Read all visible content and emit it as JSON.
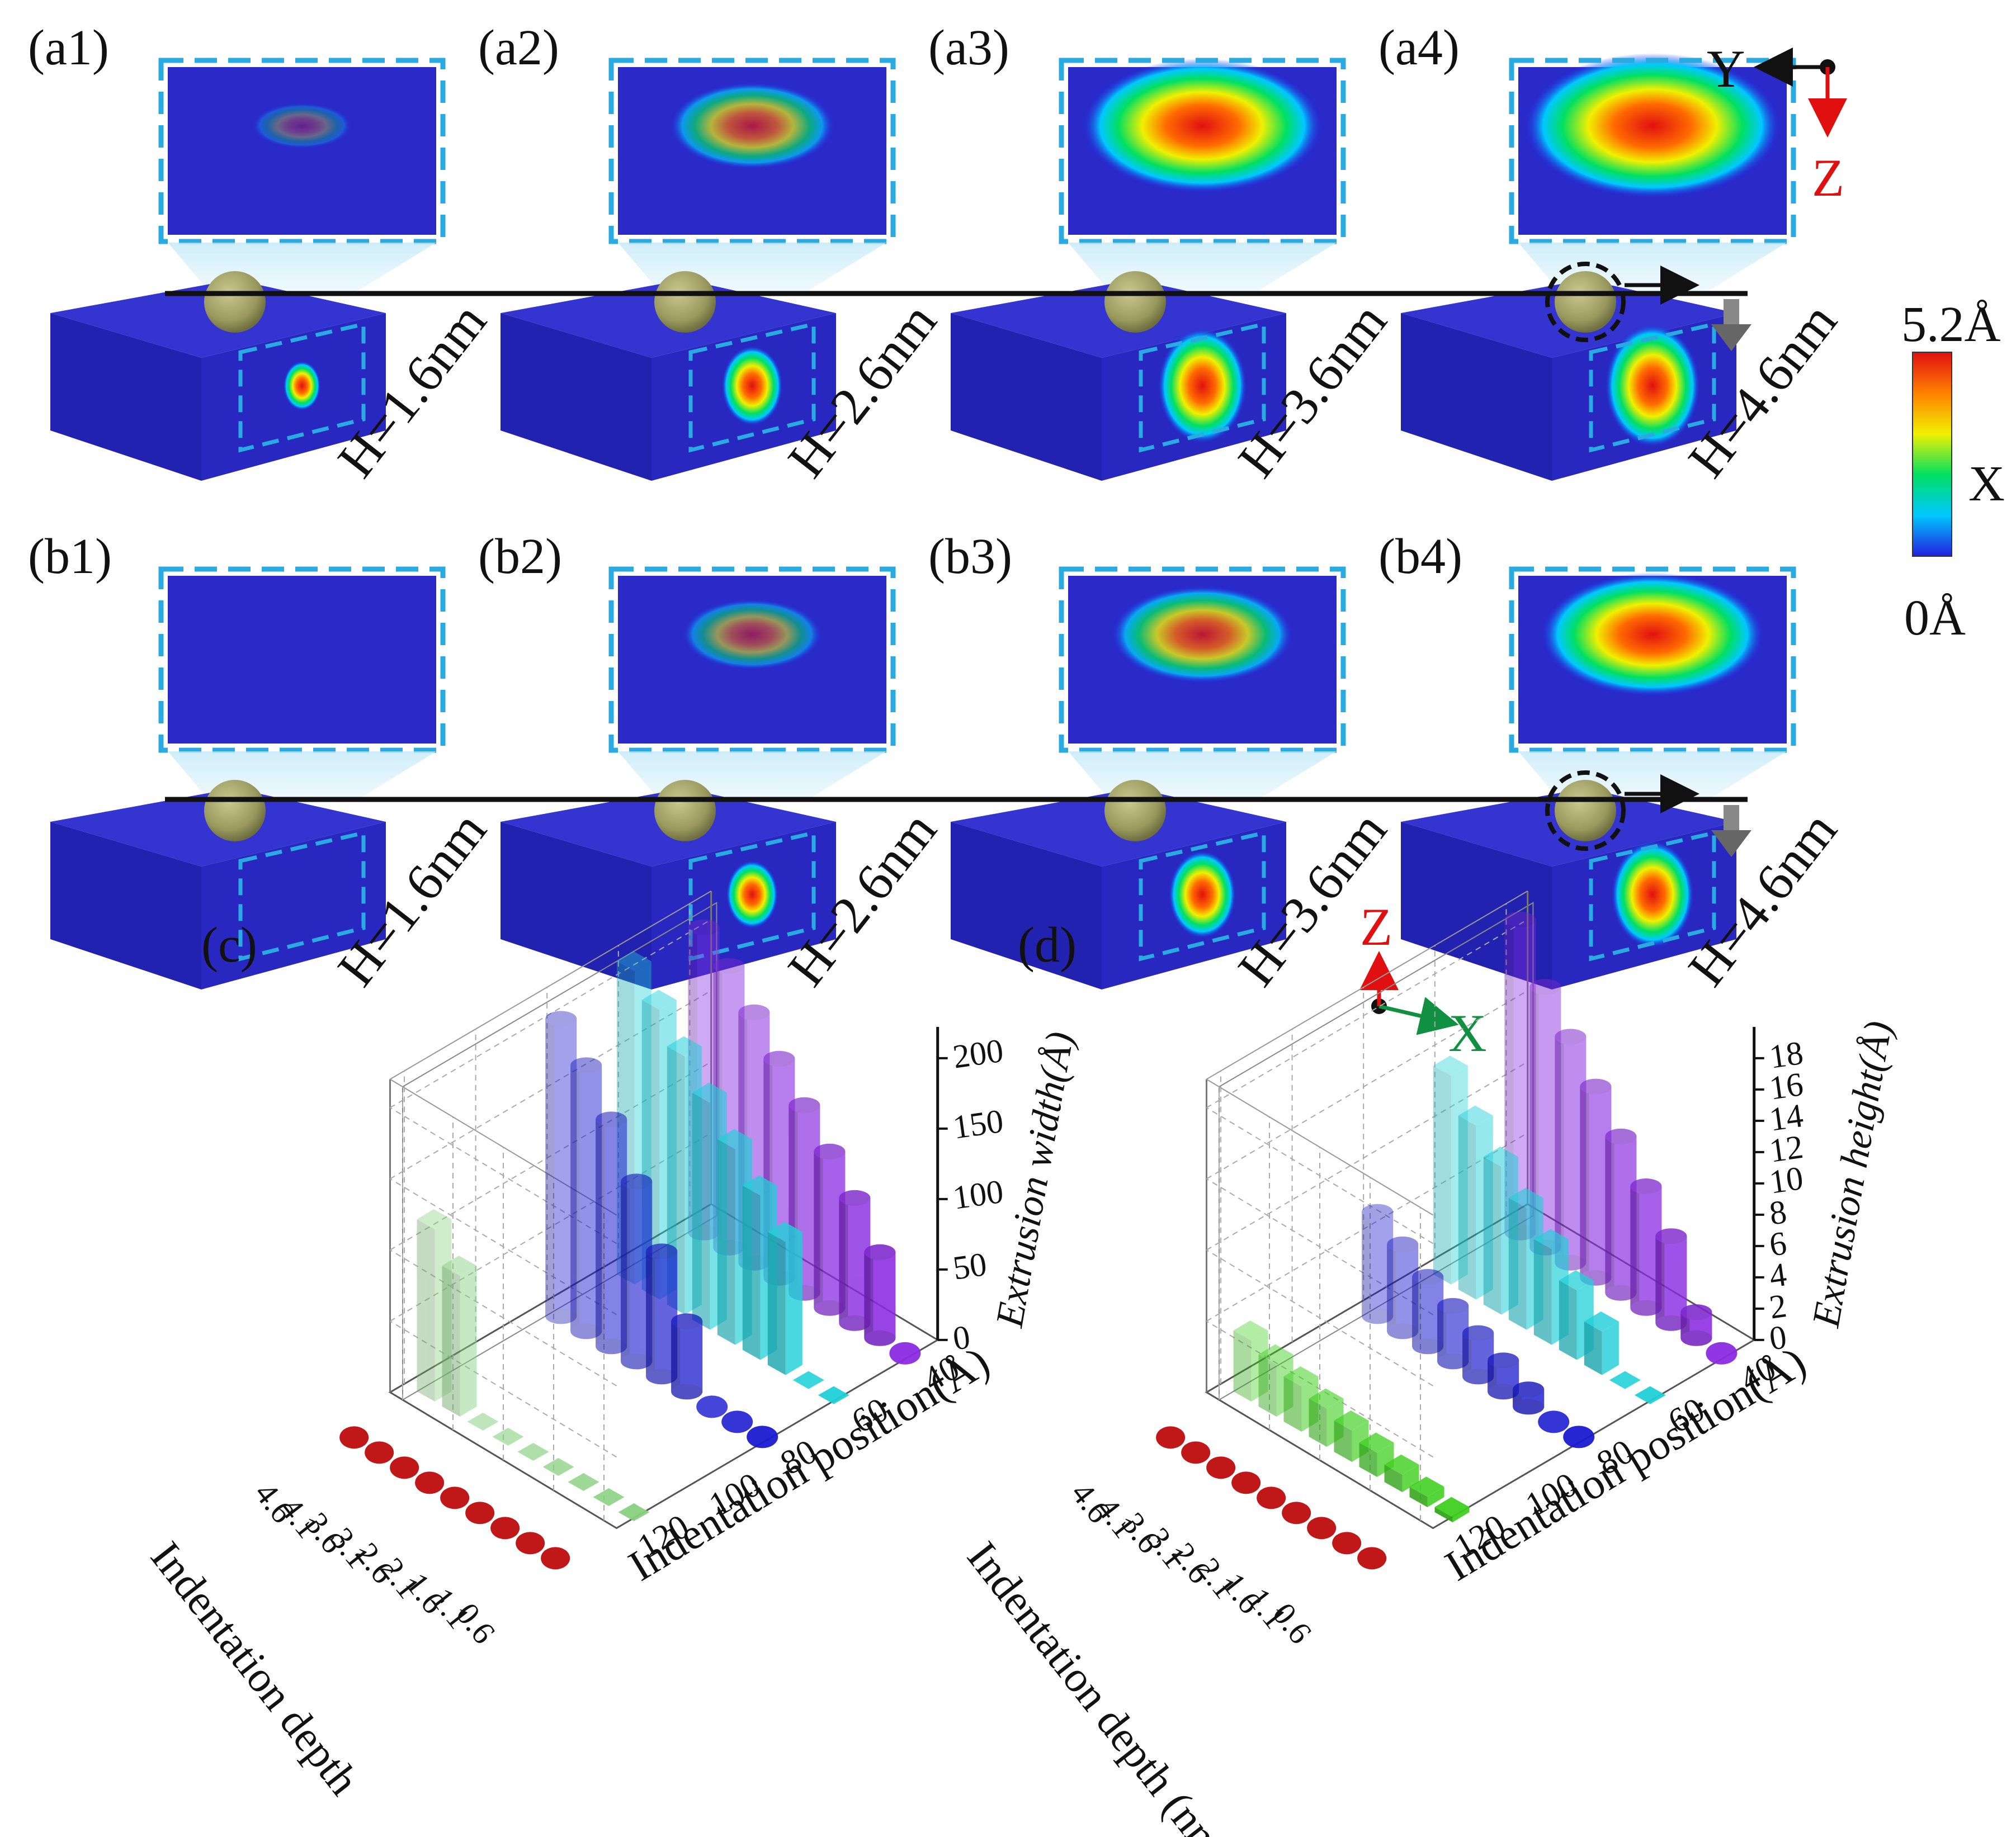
{
  "panels_top": [
    {
      "label": "(a1)",
      "depth": "H=1.6nm",
      "level": 0.06
    },
    {
      "label": "(a2)",
      "depth": "H=2.6nm",
      "level": 0.45
    },
    {
      "label": "(a3)",
      "depth": "H=3.6nm",
      "level": 0.9
    },
    {
      "label": "(a4)",
      "depth": "H=4.6nm",
      "level": 1.0
    }
  ],
  "panels_bottom": [
    {
      "label": "(b1)",
      "depth": "H=1.6nm",
      "level": 0.0
    },
    {
      "label": "(b2)",
      "depth": "H=2.6nm",
      "level": 0.3
    },
    {
      "label": "(b3)",
      "depth": "H=3.6nm",
      "level": 0.55
    },
    {
      "label": "(b4)",
      "depth": "H=4.6nm",
      "level": 0.8
    }
  ],
  "colorbar": {
    "max_label": "5.2Å",
    "mid_label": "X",
    "min_label": "0Å",
    "colors": [
      "#2020e0",
      "#00c8ff",
      "#00e060",
      "#f0f000",
      "#ff8000",
      "#e01010"
    ]
  },
  "axes_top": {
    "y": "Y",
    "z": "Z"
  },
  "axes_bottom": {
    "z": "Z",
    "x": "X"
  },
  "chart_data": [
    {
      "panel_label": "(c)",
      "type": "bar3d",
      "zlabel": "Extrusion width(Å)",
      "zticks": [
        "0",
        "50",
        "100",
        "150",
        "200"
      ],
      "zlim": [
        0,
        200
      ],
      "xlabel": "Indentation position(Å)",
      "xticks": [
        "40",
        "60",
        "80",
        "100",
        "120"
      ],
      "ylabel": "Indentation depth",
      "yticks": [
        "4.6",
        "4.1",
        "3.6",
        "3.1",
        "2.6",
        "2.1",
        "1.6",
        "1.1",
        "0.6"
      ],
      "series": [
        {
          "name": "40",
          "color": "#8a2be2",
          "shape": "cylinder",
          "values": [
            195,
            180,
            160,
            140,
            120,
            100,
            80,
            55,
            0
          ]
        },
        {
          "name": "60",
          "color": "#20d0d8",
          "shape": "box",
          "values": [
            200,
            185,
            165,
            145,
            125,
            105,
            85,
            0,
            0
          ]
        },
        {
          "name": "80",
          "color": "#1a1ad0",
          "shape": "cylinder",
          "values": [
            190,
            170,
            145,
            115,
            80,
            45,
            0,
            0,
            0
          ]
        },
        {
          "name": "120",
          "color": "#88d080",
          "shape": "box",
          "values": [
            110,
            90,
            0,
            0,
            0,
            0,
            0,
            0,
            0
          ]
        }
      ]
    },
    {
      "panel_label": "(d)",
      "type": "bar3d",
      "zlabel": "Extrusion height(Å)",
      "zticks": [
        "0",
        "2",
        "4",
        "6",
        "8",
        "10",
        "12",
        "14",
        "16",
        "18"
      ],
      "zlim": [
        0,
        18
      ],
      "xlabel": "Indentation position(Å)",
      "xticks": [
        "40",
        "60",
        "80",
        "100",
        "120"
      ],
      "ylabel": "Indentation depth (nm)",
      "yticks": [
        "4.6",
        "4.1",
        "3.6",
        "3.1",
        "2.6",
        "2.1",
        "1.6",
        "1.1",
        "0.6"
      ],
      "series": [
        {
          "name": "40",
          "color": "#8a2be2",
          "shape": "cylinder",
          "values": [
            18,
            15,
            13,
            11,
            9,
            7,
            5,
            1.5,
            0
          ]
        },
        {
          "name": "60",
          "color": "#20d0d8",
          "shape": "box",
          "values": [
            12,
            10,
            8.5,
            7,
            5.5,
            4,
            2.5,
            0,
            0
          ]
        },
        {
          "name": "80",
          "color": "#1a1ad0",
          "shape": "cylinder",
          "values": [
            6,
            5,
            4,
            3.2,
            2.5,
            1.8,
            1,
            0,
            0
          ]
        },
        {
          "name": "120",
          "color": "#40d020",
          "shape": "box",
          "values": [
            3.5,
            3,
            2.6,
            2.2,
            1.8,
            1.4,
            1,
            0.6,
            0.3
          ]
        }
      ]
    }
  ]
}
